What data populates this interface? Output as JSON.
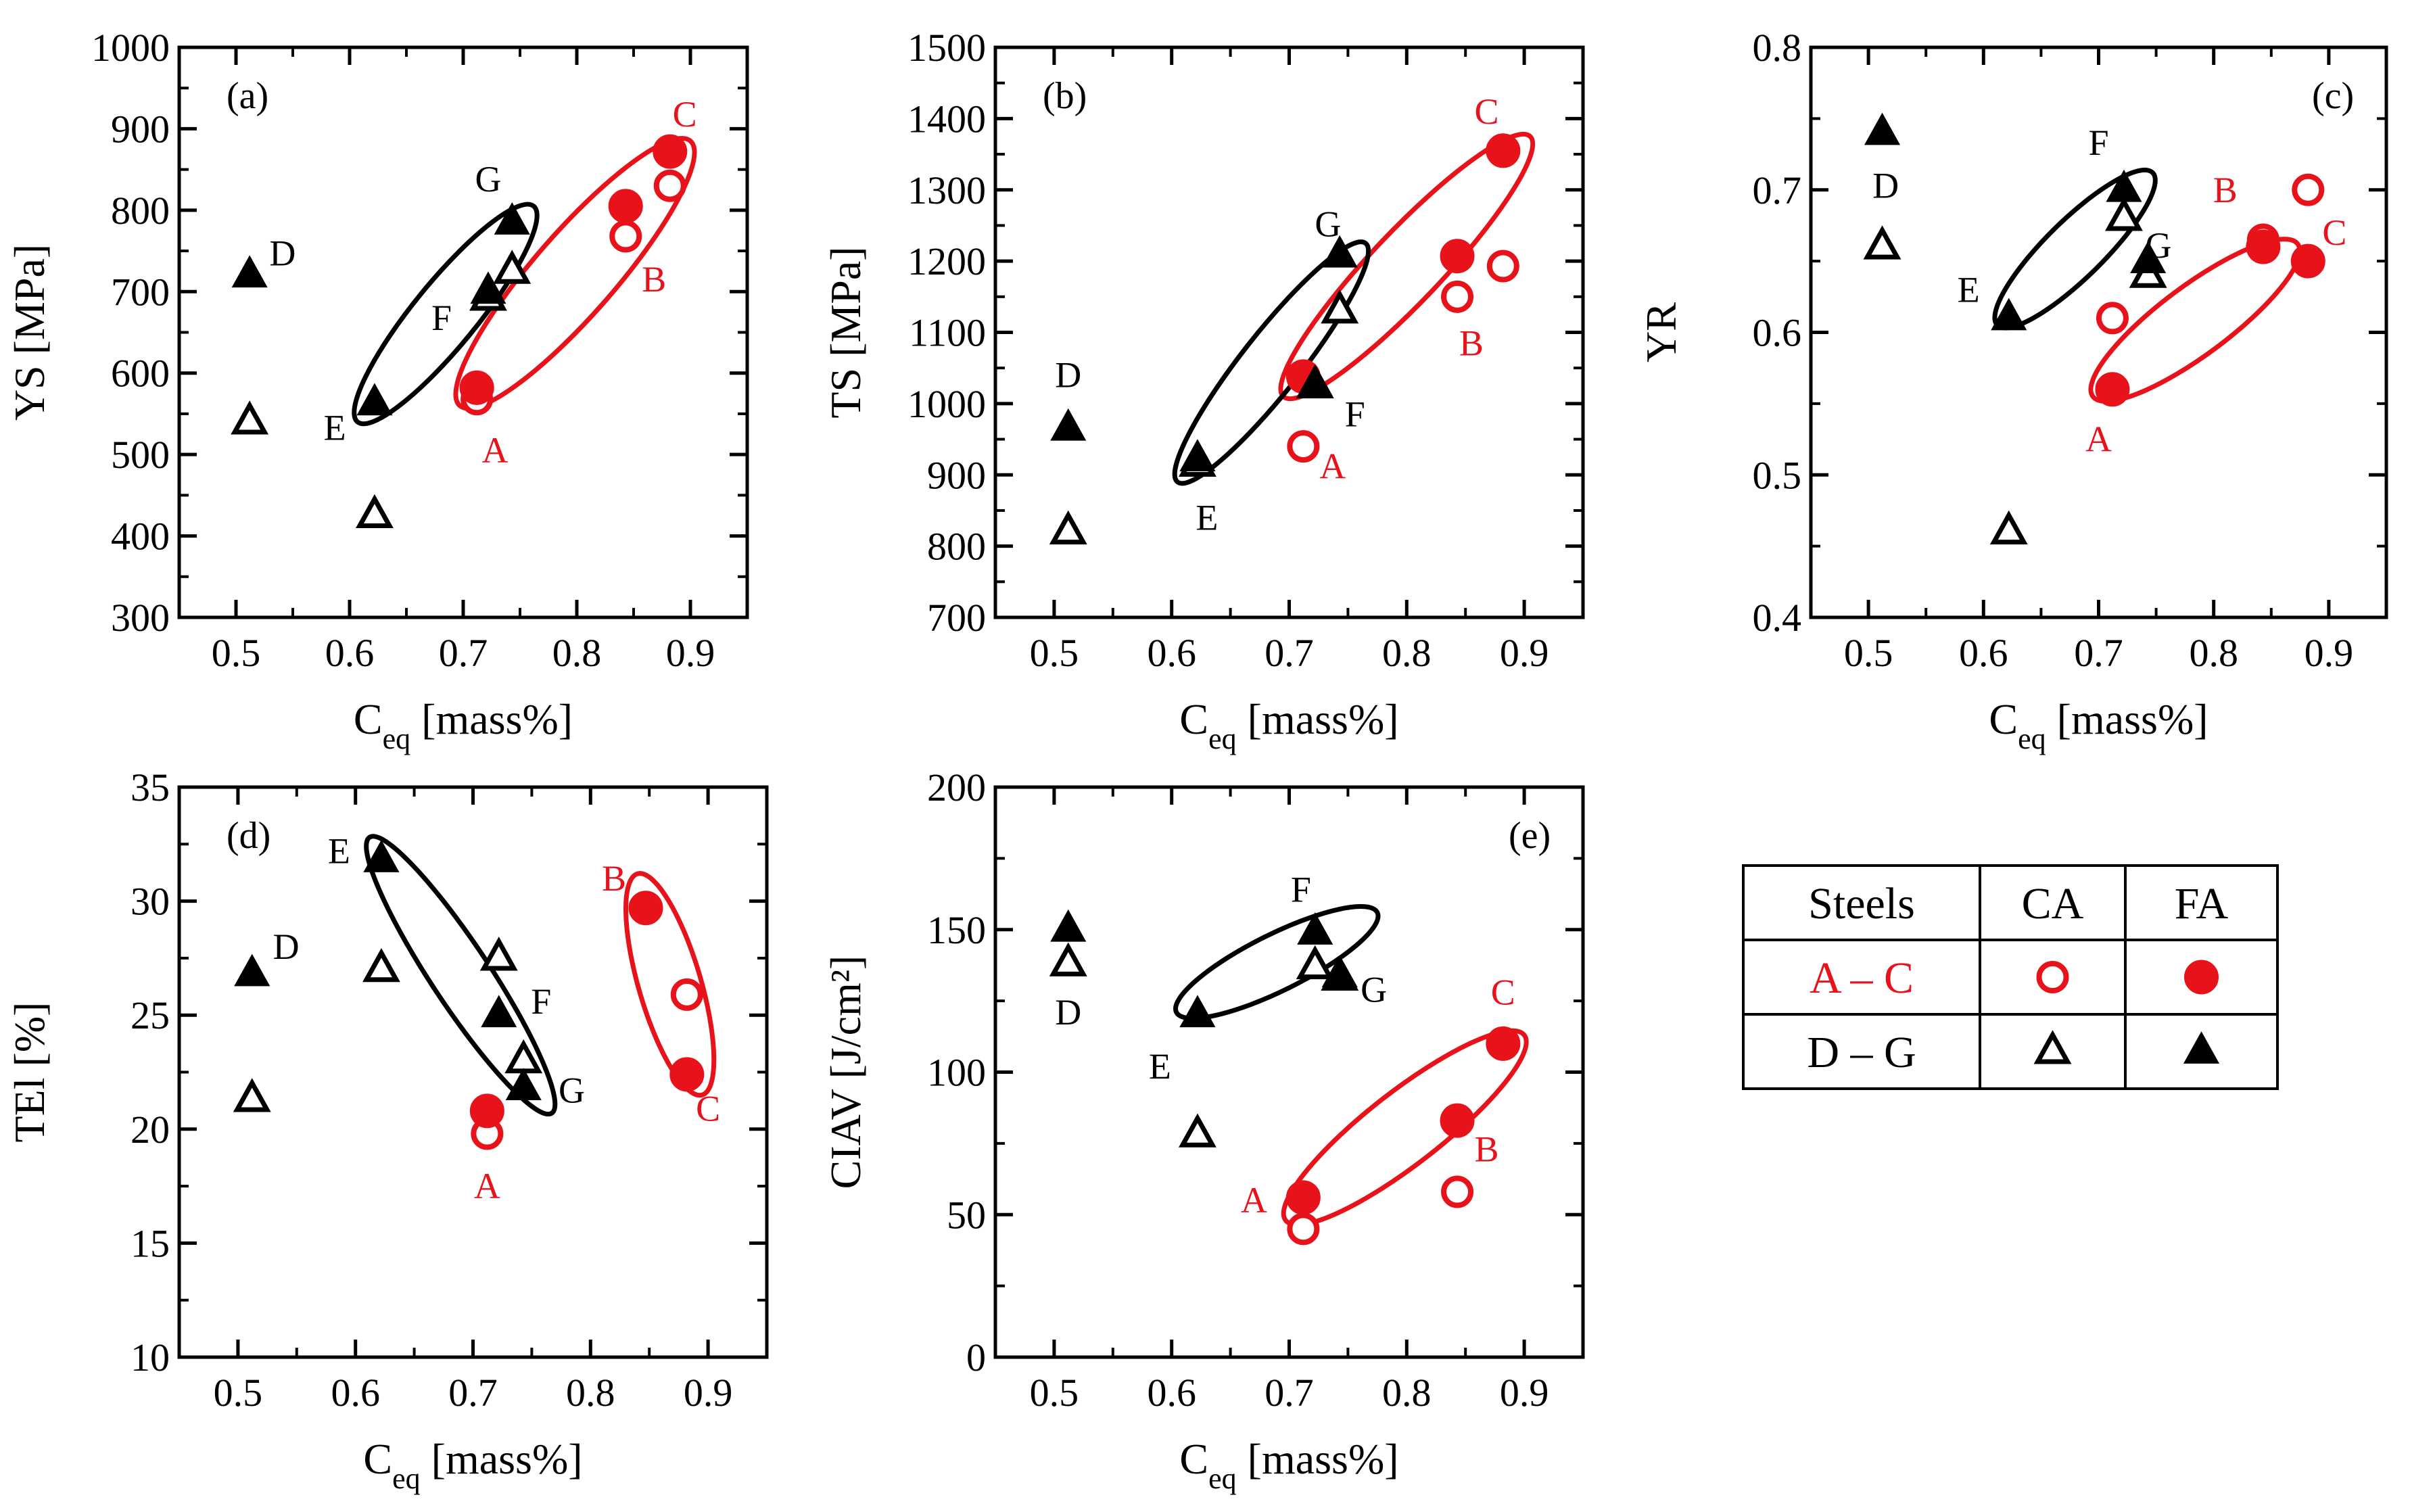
{
  "colors": {
    "ca_fa_ac": "#e8121b",
    "dg": "#000000"
  },
  "markers": {
    "ac_ca": "open-circle",
    "ac_fa": "filled-circle",
    "dg_ca": "open-triangle",
    "dg_fa": "filled-triangle"
  },
  "chart_data": [
    {
      "type": "scatter",
      "panel": "(a)",
      "xlabel": "C",
      "xlabel_sub": "eq",
      "xlabel_unit": " [mass%]",
      "ylabel": "YS [MPa]",
      "xlim": [
        0.45,
        0.95
      ],
      "ylim": [
        300,
        1000
      ],
      "xticks": [
        "0.5",
        "0.6",
        "0.7",
        "0.8",
        "0.9"
      ],
      "yticks": [
        "300",
        "400",
        "500",
        "600",
        "700",
        "800",
        "900",
        "1000"
      ],
      "series": [
        {
          "group": "A-C",
          "treat": "CA",
          "points": [
            [
              0.712,
              568
            ],
            [
              0.843,
              768
            ],
            [
              0.882,
              830
            ]
          ]
        },
        {
          "group": "A-C",
          "treat": "FA",
          "points": [
            [
              0.712,
              582
            ],
            [
              0.843,
              805
            ],
            [
              0.882,
              872
            ]
          ]
        },
        {
          "group": "D-G",
          "treat": "CA",
          "points": [
            [
              0.512,
              540
            ],
            [
              0.622,
              425
            ],
            [
              0.722,
              692
            ],
            [
              0.743,
              725
            ]
          ]
        },
        {
          "group": "D-G",
          "treat": "FA",
          "points": [
            [
              0.512,
              720
            ],
            [
              0.622,
              563
            ],
            [
              0.722,
              700
            ],
            [
              0.743,
              785
            ]
          ]
        }
      ],
      "labels": [
        {
          "text": "A",
          "x": 0.728,
          "y": 505,
          "group": "A-C"
        },
        {
          "text": "B",
          "x": 0.868,
          "y": 715,
          "group": "A-C"
        },
        {
          "text": "C",
          "x": 0.895,
          "y": 918,
          "group": "A-C"
        },
        {
          "text": "D",
          "x": 0.541,
          "y": 747,
          "group": "D-G"
        },
        {
          "text": "E",
          "x": 0.587,
          "y": 533,
          "group": "D-G"
        },
        {
          "text": "F",
          "x": 0.681,
          "y": 668,
          "group": "D-G"
        },
        {
          "text": "G",
          "x": 0.722,
          "y": 838,
          "group": "D-G"
        }
      ],
      "ellipses": [
        {
          "group": "A-C",
          "p1": [
            0.697,
            560
          ],
          "p2": [
            0.9,
            885
          ],
          "minor_axis": 0.072
        },
        {
          "group": "D-G",
          "p1": [
            0.607,
            540
          ],
          "p2": [
            0.762,
            805
          ],
          "minor_axis": 0.056
        }
      ]
    },
    {
      "type": "scatter",
      "panel": "(b)",
      "xlabel": "C",
      "xlabel_sub": "eq",
      "xlabel_unit": " [mass%]",
      "ylabel": "TS [MPa]",
      "xlim": [
        0.45,
        0.95
      ],
      "ylim": [
        700,
        1500
      ],
      "xticks": [
        "0.5",
        "0.6",
        "0.7",
        "0.8",
        "0.9"
      ],
      "yticks": [
        "700",
        "800",
        "900",
        "1000",
        "1100",
        "1200",
        "1300",
        "1400",
        "1500"
      ],
      "series": [
        {
          "group": "A-C",
          "treat": "CA",
          "points": [
            [
              0.712,
              940
            ],
            [
              0.843,
              1150
            ],
            [
              0.882,
              1193
            ]
          ]
        },
        {
          "group": "A-C",
          "treat": "FA",
          "points": [
            [
              0.712,
              1038
            ],
            [
              0.843,
              1207
            ],
            [
              0.882,
              1355
            ]
          ]
        },
        {
          "group": "D-G",
          "treat": "CA",
          "points": [
            [
              0.512,
              820
            ],
            [
              0.622,
              915
            ],
            [
              0.722,
              1025
            ],
            [
              0.743,
              1130
            ]
          ]
        },
        {
          "group": "D-G",
          "treat": "FA",
          "points": [
            [
              0.512,
              965
            ],
            [
              0.622,
              922
            ],
            [
              0.722,
              1027
            ],
            [
              0.743,
              1208
            ]
          ]
        }
      ],
      "labels": [
        {
          "text": "A",
          "x": 0.737,
          "y": 912,
          "group": "A-C"
        },
        {
          "text": "B",
          "x": 0.855,
          "y": 1085,
          "group": "A-C"
        },
        {
          "text": "C",
          "x": 0.868,
          "y": 1410,
          "group": "A-C"
        },
        {
          "text": "D",
          "x": 0.512,
          "y": 1040,
          "group": "D-G"
        },
        {
          "text": "E",
          "x": 0.63,
          "y": 840,
          "group": "D-G"
        },
        {
          "text": "F",
          "x": 0.756,
          "y": 985,
          "group": "D-G"
        },
        {
          "text": "G",
          "x": 0.733,
          "y": 1252,
          "group": "D-G"
        }
      ],
      "ellipses": [
        {
          "group": "A-C",
          "p1": [
            0.695,
            1010
          ],
          "p2": [
            0.905,
            1375
          ],
          "minor_axis": 0.06
        },
        {
          "group": "D-G",
          "p1": [
            0.605,
            890
          ],
          "p2": [
            0.765,
            1225
          ],
          "minor_axis": 0.05
        }
      ]
    },
    {
      "type": "scatter",
      "panel": "(c)",
      "xlabel": "C",
      "xlabel_sub": "eq",
      "xlabel_unit": " [mass%]",
      "ylabel": "YR",
      "xlim": [
        0.45,
        0.95
      ],
      "ylim": [
        0.4,
        0.8
      ],
      "xticks": [
        "0.5",
        "0.6",
        "0.7",
        "0.8",
        "0.9"
      ],
      "yticks": [
        "0.4",
        "0.5",
        "0.6",
        "0.7",
        "0.8"
      ],
      "series": [
        {
          "group": "A-C",
          "treat": "CA",
          "points": [
            [
              0.712,
              0.61
            ],
            [
              0.843,
              0.665
            ],
            [
              0.882,
              0.7
            ]
          ]
        },
        {
          "group": "A-C",
          "treat": "FA",
          "points": [
            [
              0.712,
              0.56
            ],
            [
              0.843,
              0.66
            ],
            [
              0.882,
              0.65
            ]
          ]
        },
        {
          "group": "D-G",
          "treat": "CA",
          "points": [
            [
              0.512,
              0.66
            ],
            [
              0.622,
              0.46
            ],
            [
              0.722,
              0.68
            ],
            [
              0.743,
              0.64
            ]
          ]
        },
        {
          "group": "D-G",
          "treat": "FA",
          "points": [
            [
              0.512,
              0.74
            ],
            [
              0.622,
              0.61
            ],
            [
              0.722,
              0.7
            ],
            [
              0.743,
              0.65
            ]
          ]
        }
      ],
      "labels": [
        {
          "text": "A",
          "x": 0.7,
          "y": 0.525,
          "group": "A-C"
        },
        {
          "text": "B",
          "x": 0.81,
          "y": 0.7,
          "group": "A-C"
        },
        {
          "text": "C",
          "x": 0.905,
          "y": 0.67,
          "group": "A-C"
        },
        {
          "text": "D",
          "x": 0.515,
          "y": 0.703,
          "group": "D-G"
        },
        {
          "text": "E",
          "x": 0.587,
          "y": 0.63,
          "group": "D-G"
        },
        {
          "text": "F",
          "x": 0.7,
          "y": 0.733,
          "group": "D-G"
        },
        {
          "text": "G",
          "x": 0.752,
          "y": 0.661,
          "group": "D-G"
        }
      ],
      "ellipses": [
        {
          "group": "A-C",
          "p1": [
            0.695,
            0.555
          ],
          "p2": [
            0.873,
            0.662
          ],
          "minor_axis": 0.06
        },
        {
          "group": "D-G",
          "p1": [
            0.612,
            0.605
          ],
          "p2": [
            0.747,
            0.712
          ],
          "minor_axis": 0.05
        }
      ]
    },
    {
      "type": "scatter",
      "panel": "(d)",
      "xlabel": "C",
      "xlabel_sub": "eq",
      "xlabel_unit": " [mass%]",
      "ylabel": "TEl [%]",
      "xlim": [
        0.45,
        0.95
      ],
      "ylim": [
        10,
        35
      ],
      "xticks": [
        "0.5",
        "0.6",
        "0.7",
        "0.8",
        "0.9"
      ],
      "yticks": [
        "10",
        "15",
        "20",
        "25",
        "30",
        "35"
      ],
      "series": [
        {
          "group": "A-C",
          "treat": "CA",
          "points": [
            [
              0.712,
              19.8
            ],
            [
              0.882,
              25.9
            ]
          ]
        },
        {
          "group": "A-C",
          "treat": "FA",
          "points": [
            [
              0.712,
              20.8
            ],
            [
              0.847,
              29.7
            ],
            [
              0.882,
              22.4
            ]
          ]
        },
        {
          "group": "D-G",
          "treat": "CA",
          "points": [
            [
              0.512,
              21.3
            ],
            [
              0.622,
              27.0
            ],
            [
              0.722,
              27.5
            ],
            [
              0.743,
              23.0
            ]
          ]
        },
        {
          "group": "D-G",
          "treat": "FA",
          "points": [
            [
              0.512,
              26.8
            ],
            [
              0.622,
              31.8
            ],
            [
              0.722,
              25.0
            ],
            [
              0.743,
              21.8
            ]
          ]
        }
      ],
      "labels": [
        {
          "text": "A",
          "x": 0.712,
          "y": 17.5,
          "group": "A-C"
        },
        {
          "text": "B",
          "x": 0.82,
          "y": 31.0,
          "group": "A-C"
        },
        {
          "text": "C",
          "x": 0.9,
          "y": 20.9,
          "group": "A-C"
        },
        {
          "text": "D",
          "x": 0.541,
          "y": 28.0,
          "group": "D-G"
        },
        {
          "text": "E",
          "x": 0.586,
          "y": 32.2,
          "group": "D-G"
        },
        {
          "text": "F",
          "x": 0.758,
          "y": 25.6,
          "group": "D-G"
        },
        {
          "text": "G",
          "x": 0.784,
          "y": 21.7,
          "group": "D-G"
        }
      ],
      "ellipses": [
        {
          "group": "A-C",
          "p1": [
            0.84,
            31.2
          ],
          "p2": [
            0.895,
            21.5
          ],
          "minor_axis": 0.053
        },
        {
          "group": "D-G",
          "p1": [
            0.612,
            32.8
          ],
          "p2": [
            0.767,
            20.7
          ],
          "minor_axis": 0.05
        }
      ]
    },
    {
      "type": "scatter",
      "panel": "(e)",
      "xlabel": "C",
      "xlabel_sub": "eq",
      "xlabel_unit": " [mass%]",
      "ylabel": "CIAV [J/cm²]",
      "xlim": [
        0.45,
        0.95
      ],
      "ylim": [
        0,
        200
      ],
      "xticks": [
        "0.5",
        "0.6",
        "0.7",
        "0.8",
        "0.9"
      ],
      "yticks": [
        "0",
        "50",
        "100",
        "150",
        "200"
      ],
      "series": [
        {
          "group": "A-C",
          "treat": "CA",
          "points": [
            [
              0.712,
              45
            ],
            [
              0.843,
              58
            ]
          ]
        },
        {
          "group": "A-C",
          "treat": "FA",
          "points": [
            [
              0.712,
              56
            ],
            [
              0.843,
              83
            ],
            [
              0.882,
              110
            ]
          ]
        },
        {
          "group": "D-G",
          "treat": "CA",
          "points": [
            [
              0.512,
              138
            ],
            [
              0.622,
              78
            ],
            [
              0.722,
              137
            ],
            [
              0.743,
              133
            ]
          ]
        },
        {
          "group": "D-G",
          "treat": "FA",
          "points": [
            [
              0.512,
              150
            ],
            [
              0.622,
              120
            ],
            [
              0.722,
              149
            ],
            [
              0.743,
              134
            ]
          ]
        }
      ],
      "labels": [
        {
          "text": "A",
          "x": 0.67,
          "y": 55,
          "group": "A-C"
        },
        {
          "text": "B",
          "x": 0.868,
          "y": 73,
          "group": "A-C"
        },
        {
          "text": "C",
          "x": 0.882,
          "y": 128,
          "group": "A-C"
        },
        {
          "text": "D",
          "x": 0.512,
          "y": 121,
          "group": "D-G"
        },
        {
          "text": "E",
          "x": 0.59,
          "y": 102,
          "group": "D-G"
        },
        {
          "text": "F",
          "x": 0.71,
          "y": 164,
          "group": "D-G"
        },
        {
          "text": "G",
          "x": 0.772,
          "y": 129,
          "group": "D-G"
        }
      ],
      "ellipses": [
        {
          "group": "A-C",
          "p1": [
            0.697,
            48
          ],
          "p2": [
            0.9,
            113
          ],
          "minor_axis": 0.062
        },
        {
          "group": "D-G",
          "p1": [
            0.604,
            121
          ],
          "p2": [
            0.775,
            156
          ],
          "minor_axis": 0.048
        }
      ]
    }
  ],
  "legend": {
    "headers": [
      "Steels",
      "CA",
      "FA"
    ],
    "rows": [
      {
        "label": "A – C",
        "ca": "open-circle",
        "fa": "filled-circle",
        "group": "A-C"
      },
      {
        "label": "D – G",
        "ca": "open-triangle",
        "fa": "filled-triangle",
        "group": "D-G"
      }
    ]
  }
}
